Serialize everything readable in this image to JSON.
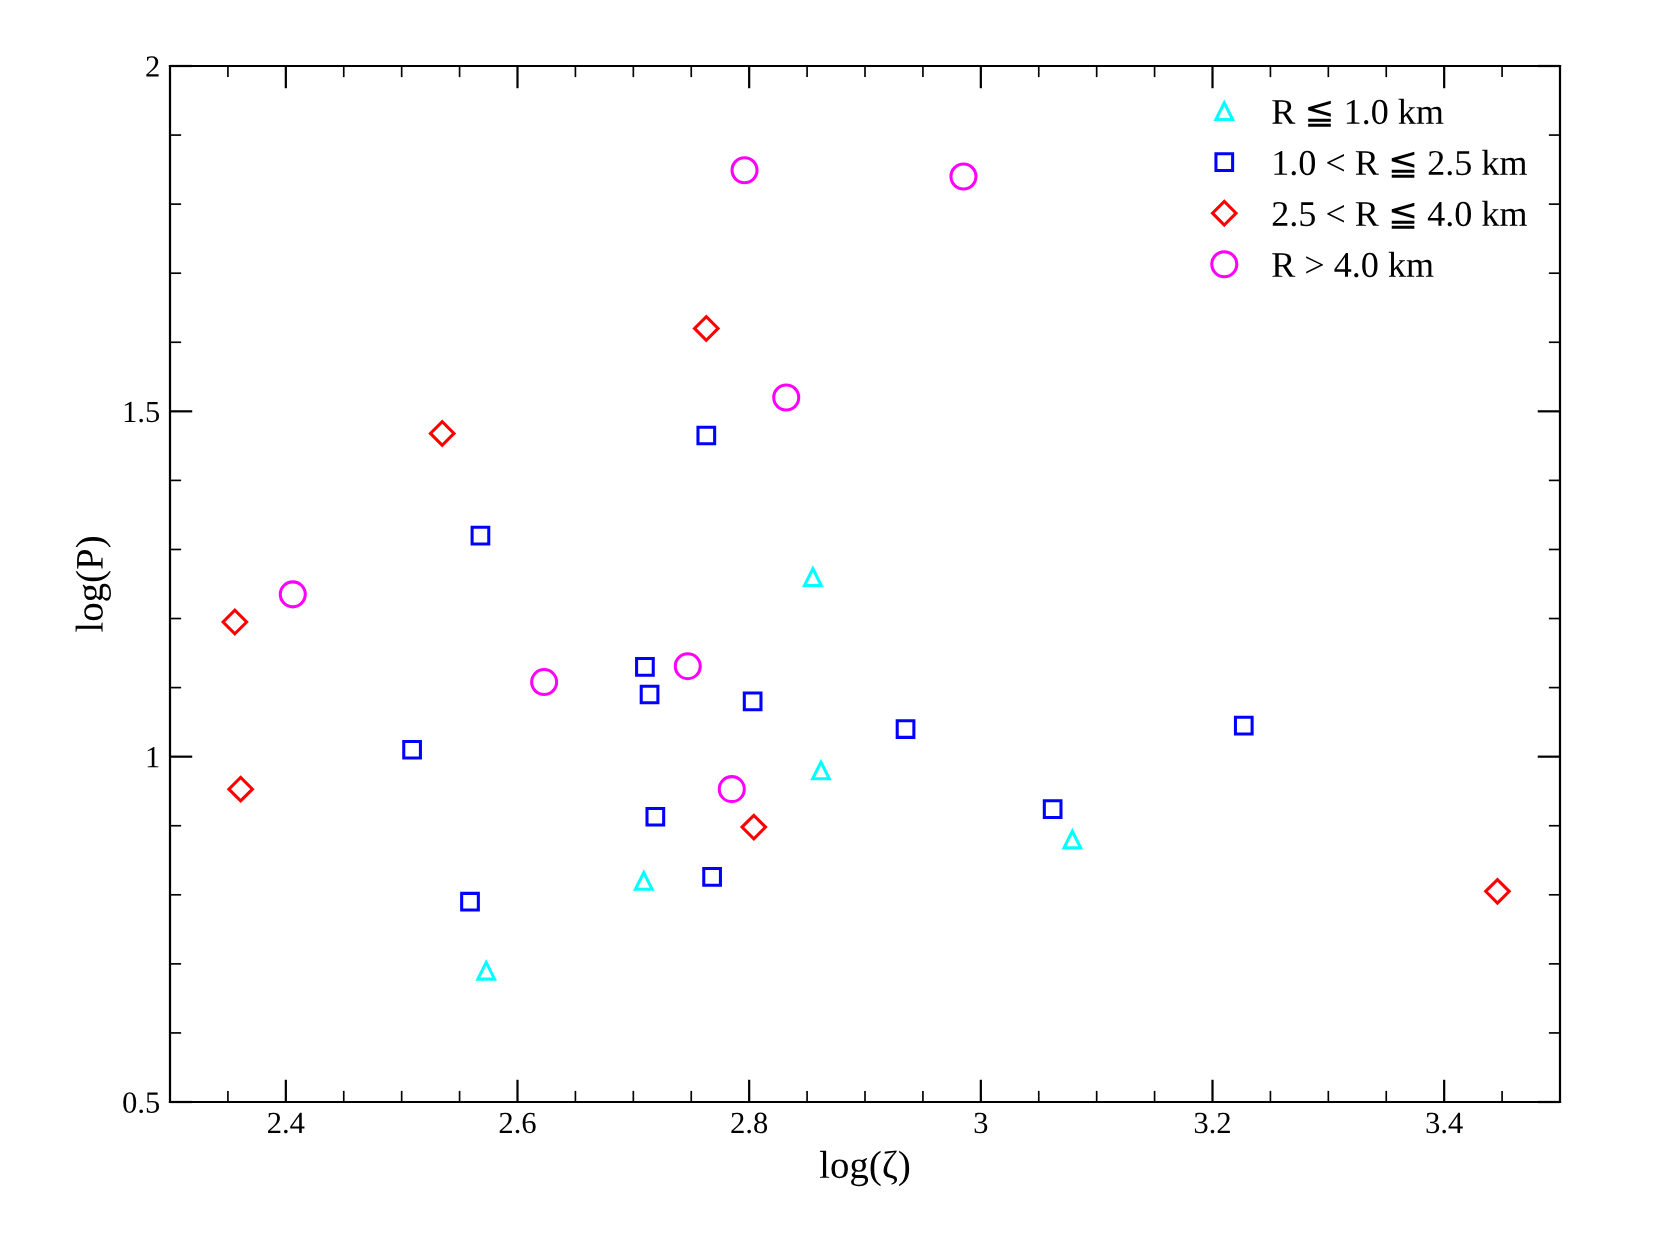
{
  "chart_data": {
    "type": "scatter",
    "xlabel": "log(ζ)",
    "ylabel": "log(P)",
    "xlim": [
      2.3,
      3.5
    ],
    "ylim": [
      0.5,
      2
    ],
    "xticks": [
      2.4,
      2.6,
      2.8,
      3,
      3.2,
      3.4
    ],
    "yticks": [
      0.5,
      1,
      1.5,
      2
    ],
    "grid": false,
    "legend": "top right",
    "series": [
      {
        "name": "R ≦ 1.0 km",
        "color": "#00ffff",
        "marker": "triangle",
        "x": [
          2.855,
          2.862,
          2.709,
          2.573,
          3.079
        ],
        "values": [
          1.26,
          0.98,
          0.82,
          0.69,
          0.88
        ]
      },
      {
        "name": "1.0 < R ≦ 2.5 km",
        "color": "#0000ff",
        "marker": "square",
        "x": [
          2.763,
          2.568,
          2.71,
          2.714,
          2.803,
          2.509,
          2.935,
          3.227,
          2.719,
          2.559,
          2.768,
          3.062
        ],
        "values": [
          1.465,
          1.32,
          1.13,
          1.09,
          1.08,
          1.01,
          1.04,
          1.045,
          0.913,
          0.79,
          0.826,
          0.924
        ]
      },
      {
        "name": "2.5 < R ≦ 4.0 km",
        "color": "#ff0000",
        "marker": "diamond",
        "x": [
          2.763,
          2.535,
          2.356,
          2.361,
          2.804,
          3.446
        ],
        "values": [
          1.62,
          1.468,
          1.195,
          0.953,
          0.898,
          0.805
        ]
      },
      {
        "name": "R > 4.0 km",
        "color": "#ff00ff",
        "marker": "circle",
        "x": [
          2.796,
          2.985,
          2.832,
          2.406,
          2.623,
          2.747,
          2.785
        ],
        "values": [
          1.849,
          1.84,
          1.52,
          1.235,
          1.108,
          1.131,
          0.953
        ]
      }
    ]
  }
}
